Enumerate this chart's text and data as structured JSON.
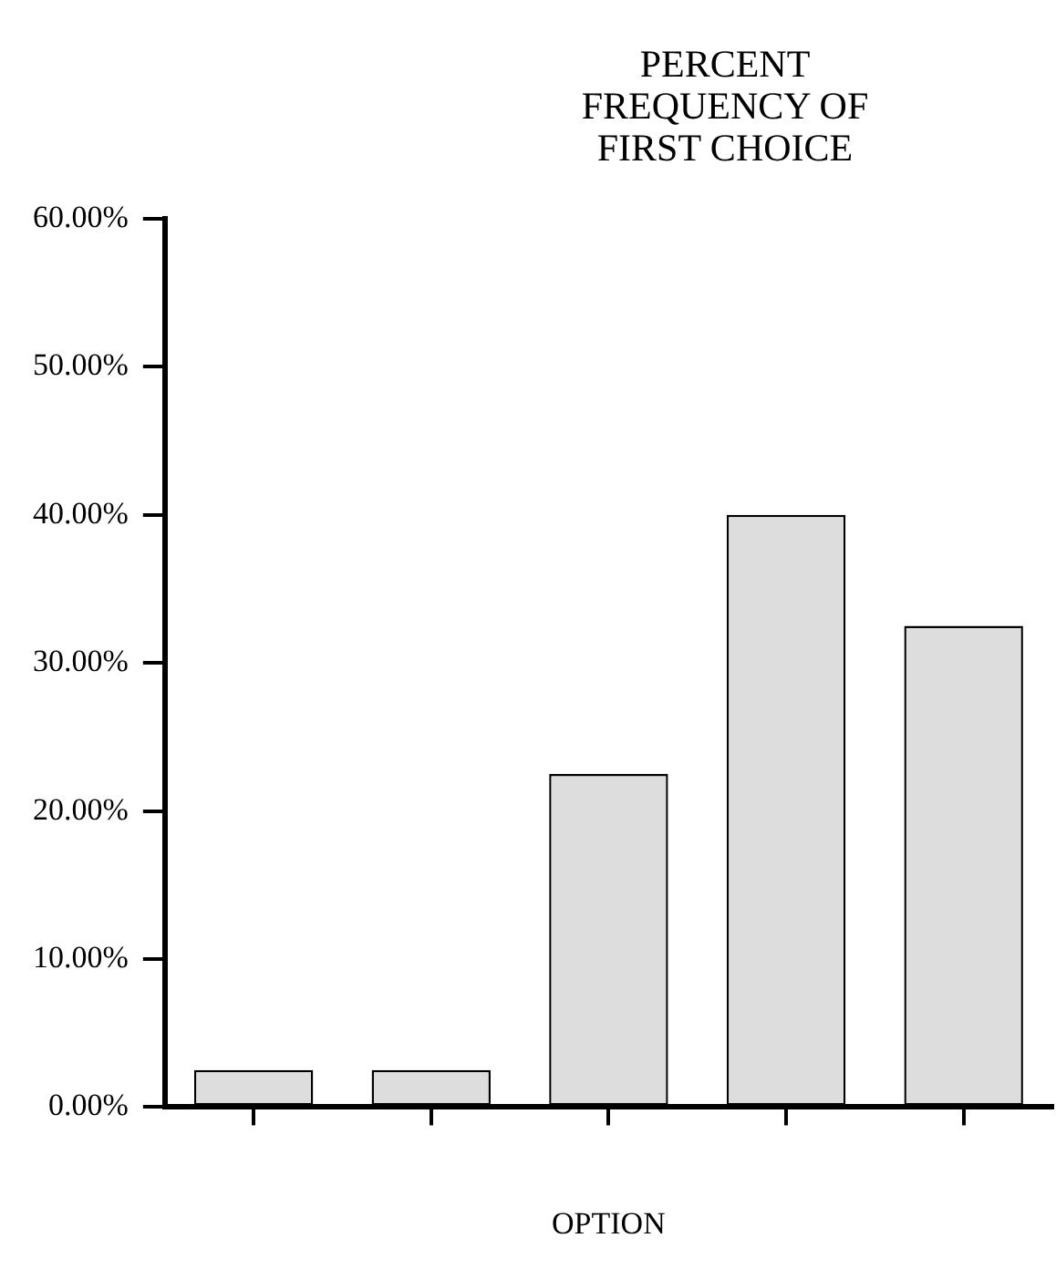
{
  "chart_data": {
    "type": "bar",
    "title": "PERCENT FREQUENCY OF FIRST CHOICE",
    "xlabel": "OPTION",
    "categories": [
      null,
      null,
      null,
      null,
      null
    ],
    "values": [
      2.5,
      2.5,
      22.5,
      40,
      32.5
    ],
    "color": "#dddddd",
    "ylim": [
      0,
      60
    ],
    "yticks": [
      {
        "value": 0,
        "label": "0.00%"
      },
      {
        "value": 10,
        "label": "10.00%"
      },
      {
        "value": 20,
        "label": "20.00%"
      },
      {
        "value": 30,
        "label": "30.00%"
      },
      {
        "value": 40,
        "label": "40.00%"
      },
      {
        "value": 50,
        "label": "50.00%"
      },
      {
        "value": 60,
        "label": "60.00%"
      }
    ],
    "grid": false,
    "legend": false
  }
}
